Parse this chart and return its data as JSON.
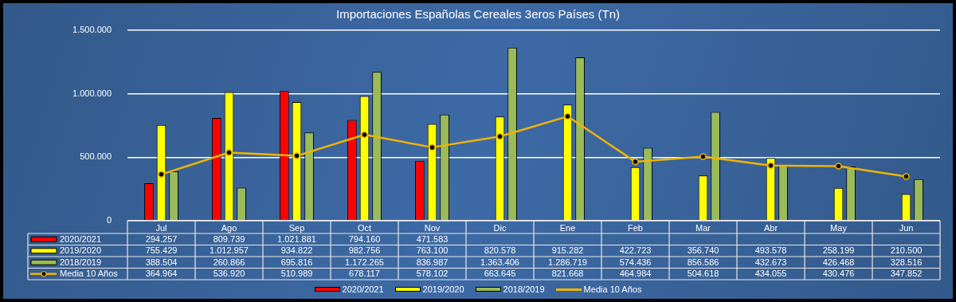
{
  "chart_data": {
    "type": "bar",
    "title": "Importaciones Españolas Cereales 3eros Países (Tn)",
    "categories": [
      "Jul",
      "Ago",
      "Sep",
      "Oct",
      "Nov",
      "Dic",
      "Ene",
      "Feb",
      "Mar",
      "Abr",
      "May",
      "Jun"
    ],
    "series": [
      {
        "name": "2020/2021",
        "color": "#ff0000",
        "values": [
          294257,
          809739,
          1021881,
          794160,
          471583,
          null,
          null,
          null,
          null,
          null,
          null,
          null
        ],
        "value_labels": [
          "294.257",
          "809.739",
          "1.021.881",
          "794.160",
          "471.583",
          null,
          null,
          null,
          null,
          null,
          null,
          null
        ]
      },
      {
        "name": "2019/2020",
        "color": "#ffff00",
        "values": [
          755429,
          1012957,
          934822,
          982756,
          763100,
          820578,
          915282,
          422723,
          356740,
          493578,
          258199,
          210500
        ],
        "value_labels": [
          "755.429",
          "1.012.957",
          "934.822",
          "982.756",
          "763.100",
          "820.578",
          "915.282",
          "422.723",
          "356.740",
          "493.578",
          "258.199",
          "210.500"
        ]
      },
      {
        "name": "2018/2019",
        "color": "#9bbb59",
        "values": [
          388504,
          260866,
          695816,
          1172265,
          836987,
          1363406,
          1286719,
          574436,
          856586,
          432673,
          426468,
          328516
        ],
        "value_labels": [
          "388.504",
          "260.866",
          "695.816",
          "1.172.265",
          "836.987",
          "1.363.406",
          "1.286.719",
          "574.436",
          "856.586",
          "432.673",
          "426.468",
          "328.516"
        ]
      },
      {
        "name": "Media 10 Años",
        "type": "line",
        "color": "#f0b400",
        "values": [
          364964,
          536920,
          510989,
          678117,
          578102,
          663645,
          821668,
          464984,
          504618,
          434055,
          430476,
          347852
        ],
        "value_labels": [
          "364.964",
          "536.920",
          "510.989",
          "678.117",
          "578.102",
          "663.645",
          "821.668",
          "464.984",
          "504.618",
          "434.055",
          "430.476",
          "347.852"
        ]
      }
    ],
    "ylim": [
      0,
      1500000
    ],
    "yticks": [
      0,
      {
        "value": 500000,
        "label": "500.000"
      },
      {
        "value": 1000000,
        "label": "1.000.000"
      },
      {
        "value": 1500000,
        "label": "1.500.000"
      }
    ],
    "grid": "y",
    "legend": "bottom",
    "marker": "circle"
  }
}
